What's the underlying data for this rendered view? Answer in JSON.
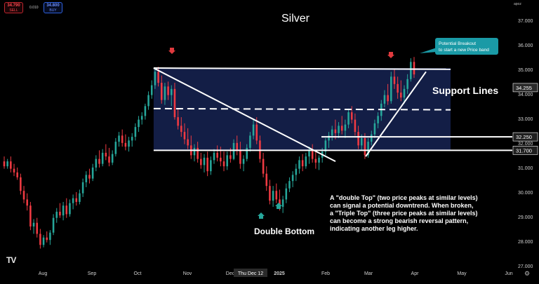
{
  "header": {
    "sell_price": "34.790",
    "sell_label": "SELL",
    "spread": "0.010",
    "buy_price": "34.800",
    "buy_label": "BUY",
    "top_right_label": "apoz"
  },
  "logo": "TV",
  "settings_icon": "gear-icon",
  "chart_data": {
    "type": "candlestick",
    "title": "Silver",
    "x_ticks": [
      "Aug",
      "Sep",
      "Oct",
      "Nov",
      "Dec",
      "2025",
      "Feb",
      "Mar",
      "Apr",
      "May",
      "Jun"
    ],
    "crosshair_date_label": "Thu Dec 12",
    "y_ticks": [
      "37.000",
      "36.000",
      "35.000",
      "34.000",
      "33.000",
      "32.000",
      "31.000",
      "30.000",
      "29.000",
      "28.000",
      "27.000"
    ],
    "ylim": [
      27.0,
      37.25
    ],
    "price_labels": [
      {
        "text": "34.255",
        "value": 34.255,
        "color": "#2a2a2a"
      },
      {
        "text": "32.250",
        "value": 32.25,
        "color": "#1f1f1f"
      },
      {
        "text": "31.700",
        "value": 31.7,
        "color": "#1f1f1f"
      }
    ],
    "colors": {
      "up": "#26a69a",
      "down": "#ef3a42",
      "band": "#14204a",
      "line": "#ffffff",
      "arrow_down": "#e03a3e",
      "arrow_up": "#26a69a"
    },
    "candles": [
      [
        31.25,
        31.45,
        30.95,
        31.05
      ],
      [
        31.05,
        31.35,
        30.95,
        31.25
      ],
      [
        31.25,
        31.45,
        30.8,
        30.95
      ],
      [
        30.95,
        31.15,
        30.65,
        30.8
      ],
      [
        30.8,
        31.0,
        30.5,
        30.6
      ],
      [
        30.6,
        30.75,
        29.9,
        30.05
      ],
      [
        30.05,
        30.25,
        29.55,
        29.7
      ],
      [
        29.7,
        29.95,
        29.25,
        29.45
      ],
      [
        29.45,
        29.6,
        28.45,
        28.6
      ],
      [
        28.6,
        28.9,
        28.3,
        28.75
      ],
      [
        28.75,
        28.95,
        28.15,
        28.3
      ],
      [
        28.3,
        28.5,
        27.7,
        27.85
      ],
      [
        27.85,
        28.25,
        27.75,
        28.15
      ],
      [
        28.15,
        28.4,
        27.95,
        28.05
      ],
      [
        28.05,
        28.45,
        27.85,
        28.35
      ],
      [
        28.35,
        29.1,
        28.25,
        28.95
      ],
      [
        28.95,
        29.35,
        28.75,
        29.2
      ],
      [
        29.2,
        29.55,
        28.95,
        29.05
      ],
      [
        29.05,
        29.6,
        28.85,
        29.45
      ],
      [
        29.45,
        29.75,
        28.95,
        29.1
      ],
      [
        29.1,
        29.7,
        29.0,
        29.55
      ],
      [
        29.55,
        29.9,
        29.3,
        29.75
      ],
      [
        29.75,
        30.0,
        29.45,
        29.6
      ],
      [
        29.6,
        30.1,
        29.5,
        29.95
      ],
      [
        29.95,
        30.55,
        29.8,
        30.4
      ],
      [
        30.4,
        30.85,
        30.2,
        30.7
      ],
      [
        30.7,
        30.95,
        30.35,
        30.55
      ],
      [
        30.55,
        31.15,
        30.45,
        31.0
      ],
      [
        31.0,
        31.5,
        30.85,
        31.35
      ],
      [
        31.35,
        31.7,
        31.0,
        31.15
      ],
      [
        31.15,
        31.75,
        31.05,
        31.6
      ],
      [
        31.6,
        31.95,
        31.3,
        31.45
      ],
      [
        31.45,
        31.8,
        31.05,
        31.2
      ],
      [
        31.2,
        31.7,
        31.1,
        31.55
      ],
      [
        31.55,
        32.2,
        31.45,
        32.05
      ],
      [
        32.05,
        32.45,
        31.85,
        32.3
      ],
      [
        32.3,
        32.55,
        31.85,
        32.0
      ],
      [
        32.0,
        32.35,
        31.7,
        31.85
      ],
      [
        31.85,
        32.25,
        31.65,
        32.1
      ],
      [
        32.1,
        32.4,
        31.85,
        32.25
      ],
      [
        32.25,
        32.8,
        32.1,
        32.65
      ],
      [
        32.65,
        33.1,
        32.45,
        32.95
      ],
      [
        32.95,
        33.25,
        32.75,
        33.1
      ],
      [
        33.1,
        33.6,
        32.95,
        33.5
      ],
      [
        33.5,
        34.1,
        33.35,
        33.95
      ],
      [
        33.95,
        34.55,
        33.8,
        34.35
      ],
      [
        34.35,
        35.05,
        34.2,
        34.9
      ],
      [
        34.9,
        35.1,
        34.3,
        34.45
      ],
      [
        34.45,
        34.75,
        33.6,
        33.75
      ],
      [
        33.75,
        34.45,
        33.55,
        34.3
      ],
      [
        34.3,
        34.5,
        33.75,
        33.95
      ],
      [
        33.95,
        34.35,
        33.5,
        34.2
      ],
      [
        34.2,
        34.45,
        32.95,
        33.05
      ],
      [
        33.05,
        33.4,
        32.55,
        32.7
      ],
      [
        32.7,
        33.05,
        32.25,
        32.45
      ],
      [
        32.45,
        32.8,
        31.95,
        32.15
      ],
      [
        32.15,
        32.6,
        31.75,
        31.9
      ],
      [
        31.9,
        32.3,
        31.35,
        31.5
      ],
      [
        31.5,
        31.95,
        31.25,
        31.8
      ],
      [
        31.8,
        32.05,
        31.2,
        31.35
      ],
      [
        31.35,
        31.6,
        30.95,
        31.1
      ],
      [
        31.1,
        31.55,
        30.8,
        31.4
      ],
      [
        31.4,
        31.65,
        30.65,
        30.85
      ],
      [
        30.85,
        31.45,
        30.7,
        31.3
      ],
      [
        31.3,
        31.75,
        31.15,
        31.6
      ],
      [
        31.6,
        31.9,
        31.25,
        31.4
      ],
      [
        31.4,
        31.85,
        31.05,
        31.25
      ],
      [
        31.25,
        31.65,
        30.85,
        31.05
      ],
      [
        31.05,
        31.65,
        30.9,
        31.5
      ],
      [
        31.5,
        31.8,
        31.2,
        31.35
      ],
      [
        31.35,
        32.15,
        31.3,
        32.0
      ],
      [
        32.0,
        32.3,
        31.5,
        31.7
      ],
      [
        31.7,
        32.05,
        30.95,
        31.15
      ],
      [
        31.15,
        31.5,
        30.85,
        31.35
      ],
      [
        31.35,
        31.95,
        31.25,
        31.8
      ],
      [
        31.8,
        32.45,
        31.65,
        32.3
      ],
      [
        32.3,
        32.95,
        32.15,
        32.75
      ],
      [
        32.75,
        33.05,
        31.95,
        32.1
      ],
      [
        32.1,
        32.3,
        31.2,
        31.35
      ],
      [
        31.35,
        31.6,
        30.6,
        30.75
      ],
      [
        30.75,
        31.05,
        30.05,
        30.25
      ],
      [
        30.25,
        30.5,
        29.5,
        29.65
      ],
      [
        29.65,
        30.25,
        29.4,
        30.05
      ],
      [
        30.05,
        30.35,
        29.55,
        29.7
      ],
      [
        29.7,
        30.1,
        29.25,
        29.4
      ],
      [
        29.4,
        29.85,
        29.15,
        29.7
      ],
      [
        29.7,
        30.35,
        29.55,
        30.15
      ],
      [
        30.15,
        30.6,
        30.0,
        30.45
      ],
      [
        30.45,
        30.85,
        30.2,
        30.7
      ],
      [
        30.7,
        31.15,
        30.45,
        30.95
      ],
      [
        30.95,
        31.45,
        30.75,
        31.3
      ],
      [
        31.3,
        31.55,
        30.85,
        31.05
      ],
      [
        31.05,
        31.6,
        30.95,
        31.45
      ],
      [
        31.45,
        31.85,
        31.15,
        31.7
      ],
      [
        31.7,
        31.95,
        31.2,
        31.35
      ],
      [
        31.35,
        31.65,
        30.95,
        31.2
      ],
      [
        31.2,
        31.5,
        30.9,
        31.4
      ],
      [
        31.4,
        31.8,
        31.2,
        31.65
      ],
      [
        31.65,
        32.2,
        31.5,
        32.1
      ],
      [
        32.1,
        32.45,
        31.8,
        32.3
      ],
      [
        32.3,
        32.7,
        32.1,
        32.55
      ],
      [
        32.55,
        32.95,
        32.15,
        32.4
      ],
      [
        32.4,
        32.85,
        32.2,
        32.7
      ],
      [
        32.7,
        33.1,
        32.35,
        32.5
      ],
      [
        32.5,
        32.95,
        32.2,
        32.75
      ],
      [
        32.75,
        33.4,
        32.6,
        33.25
      ],
      [
        33.25,
        33.5,
        32.8,
        32.95
      ],
      [
        32.95,
        33.2,
        32.3,
        32.45
      ],
      [
        32.45,
        32.7,
        31.75,
        31.9
      ],
      [
        31.9,
        32.35,
        31.7,
        32.2
      ],
      [
        32.2,
        32.4,
        31.35,
        31.5
      ],
      [
        31.5,
        32.2,
        31.4,
        32.05
      ],
      [
        32.05,
        32.5,
        31.9,
        32.35
      ],
      [
        32.35,
        32.95,
        32.2,
        32.8
      ],
      [
        32.8,
        33.25,
        32.6,
        33.1
      ],
      [
        33.1,
        33.75,
        32.9,
        33.6
      ],
      [
        33.6,
        34.15,
        33.45,
        33.95
      ],
      [
        33.95,
        34.4,
        33.55,
        33.7
      ],
      [
        33.7,
        34.9,
        33.6,
        34.7
      ],
      [
        34.7,
        35.0,
        34.2,
        34.4
      ],
      [
        34.4,
        34.7,
        33.8,
        34.05
      ],
      [
        34.05,
        34.55,
        33.7,
        33.85
      ],
      [
        33.85,
        34.35,
        33.6,
        34.2
      ],
      [
        34.2,
        34.8,
        34.0,
        34.6
      ],
      [
        34.6,
        35.45,
        34.5,
        35.3
      ],
      [
        35.3,
        35.5,
        34.65,
        34.79
      ]
    ],
    "annotations": {
      "title_text": "Silver",
      "support_lines_label": "Support Lines",
      "double_bottom_label": "Double Bottom",
      "breakout_callout": [
        "Potential Breakout",
        "to start a new Price band"
      ],
      "note_lines": [
        "A \"double Top\" (two price peaks at similar levels)",
        "can signal a potential downtrend. When broken,",
        "a \"Triple Top\" (three price peaks at similar levels)",
        "can become a strong bearish reversal pattern,",
        "indicating another leg higher."
      ]
    },
    "grid": false,
    "legend": "none"
  }
}
